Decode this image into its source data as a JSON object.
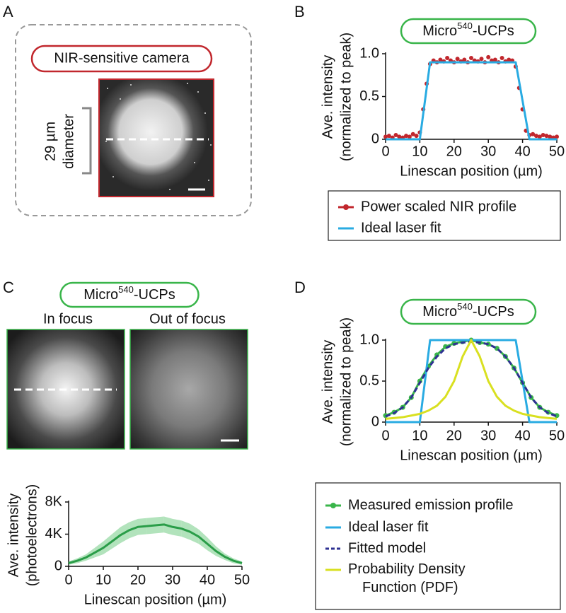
{
  "panel_labels": [
    "A",
    "B",
    "C",
    "D"
  ],
  "panel_a": {
    "camera_label": "NIR-sensitive camera",
    "label_color": "#c1272d",
    "scale_label": [
      "29 µm",
      "diameter"
    ]
  },
  "panel_c": {
    "image_labels": [
      "In focus",
      "Out of focus"
    ]
  },
  "chart_data": [
    {
      "type": "line",
      "title": [
        "Micro",
        "540",
        "-UCPs"
      ],
      "title_box_color": "#39b54a",
      "xlabel": "Linescan position (µm)",
      "ylabel": [
        "Ave. intensity",
        "(normalized to peak)"
      ],
      "xlim": [
        0,
        50
      ],
      "xticks": [
        0,
        10,
        20,
        30,
        40,
        50
      ],
      "ylim": [
        0,
        1
      ],
      "yticks": [
        0,
        0.5,
        {
          "value": 1,
          "label": "1.0"
        }
      ],
      "x": [
        0,
        1,
        2,
        3,
        4,
        5,
        6,
        7,
        8,
        9,
        10,
        11,
        12,
        13,
        14,
        15,
        16,
        17,
        18,
        19,
        20,
        21,
        22,
        23,
        24,
        25,
        26,
        27,
        28,
        29,
        30,
        31,
        32,
        33,
        34,
        35,
        36,
        37,
        38,
        39,
        40,
        41,
        42,
        43,
        44,
        45,
        46,
        47,
        48,
        49,
        50
      ],
      "series": [
        {
          "name": "Power scaled NIR profile",
          "color": "#c1272d",
          "markers": true,
          "line": false,
          "values": [
            0.03,
            0.04,
            0.02,
            0.05,
            0.03,
            0.02,
            0.04,
            0.03,
            0.06,
            0.04,
            0.08,
            0.35,
            0.65,
            0.88,
            0.92,
            0.9,
            0.93,
            0.91,
            0.95,
            0.92,
            0.9,
            0.94,
            0.91,
            0.93,
            0.9,
            0.95,
            0.92,
            0.91,
            0.94,
            0.9,
            0.96,
            0.92,
            0.93,
            0.9,
            0.95,
            0.91,
            0.93,
            0.92,
            0.85,
            0.6,
            0.35,
            0.1,
            0.05,
            0.06,
            0.04,
            0.03,
            0.05,
            0.04,
            0.03,
            0.02,
            0.03
          ]
        },
        {
          "name": "Ideal laser fit",
          "color": "#29abe2",
          "markers": false,
          "x": [
            0,
            10,
            13,
            38,
            42,
            50
          ],
          "values": [
            0,
            0,
            0.9,
            0.9,
            0,
            0
          ]
        }
      ]
    },
    {
      "type": "line",
      "title": [
        "Micro",
        "540",
        "-UCPs"
      ],
      "title_box_color": "#39b54a",
      "xlabel": "Linescan position (µm)",
      "ylabel": [
        "Ave. intensity",
        "(photoelectrons)"
      ],
      "xlim": [
        0,
        50
      ],
      "xticks": [
        0,
        10,
        20,
        30,
        40,
        50
      ],
      "ylim": [
        0,
        8000
      ],
      "yticks": [
        0,
        {
          "value": 4000,
          "label": "4K"
        },
        {
          "value": 8000,
          "label": "8K"
        }
      ],
      "x": [
        0,
        2.5,
        5,
        7.5,
        10,
        12.5,
        15,
        17.5,
        20,
        22.5,
        25,
        27.5,
        30,
        32.5,
        35,
        37.5,
        40,
        42.5,
        45,
        47.5,
        50
      ],
      "series": [
        {
          "color": "#2a9d48",
          "band_color": "#7fd08f",
          "values": [
            400,
            700,
            1100,
            1700,
            2300,
            3100,
            3900,
            4500,
            4900,
            5000,
            5100,
            5200,
            4900,
            4700,
            4300,
            3700,
            2800,
            1900,
            1200,
            700,
            400
          ],
          "errors": [
            200,
            300,
            400,
            600,
            800,
            900,
            1000,
            1000,
            1000,
            1000,
            1000,
            1000,
            1000,
            1000,
            1000,
            900,
            800,
            600,
            400,
            300,
            200
          ]
        }
      ]
    },
    {
      "type": "line",
      "title": [
        "Micro",
        "540",
        "-UCPs"
      ],
      "title_box_color": "#39b54a",
      "xlabel": "Linescan position (µm)",
      "ylabel": [
        "Ave. intensity",
        "(normalized to peak)"
      ],
      "xlim": [
        0,
        50
      ],
      "xticks": [
        0,
        10,
        20,
        30,
        40,
        50
      ],
      "ylim": [
        0,
        1
      ],
      "yticks": [
        0,
        0.5,
        {
          "value": 1,
          "label": "1.0"
        }
      ],
      "x": [
        0,
        2.5,
        5,
        7.5,
        10,
        12.5,
        15,
        17.5,
        20,
        22.5,
        25,
        27.5,
        30,
        32.5,
        35,
        37.5,
        40,
        42.5,
        45,
        47.5,
        50
      ],
      "series": [
        {
          "name": "Measured emission profile",
          "color": "#39b54a",
          "markers": true,
          "values": [
            0.08,
            0.12,
            0.18,
            0.3,
            0.5,
            0.68,
            0.82,
            0.92,
            0.96,
            0.98,
            1.0,
            0.97,
            0.95,
            0.9,
            0.8,
            0.66,
            0.48,
            0.3,
            0.18,
            0.12,
            0.08
          ]
        },
        {
          "name": "Ideal laser fit",
          "color": "#29abe2",
          "markers": false,
          "x": [
            0,
            10,
            13,
            38,
            42,
            50
          ],
          "values": [
            0,
            0,
            1,
            1,
            0,
            0
          ]
        },
        {
          "name": "Fitted model",
          "color": "#2e3192",
          "markers": false,
          "dash": true,
          "values": [
            0.07,
            0.11,
            0.18,
            0.3,
            0.48,
            0.66,
            0.8,
            0.9,
            0.95,
            0.97,
            0.98,
            0.97,
            0.95,
            0.9,
            0.8,
            0.66,
            0.48,
            0.3,
            0.18,
            0.11,
            0.07
          ]
        },
        {
          "name": "Probability Density Function (PDF)",
          "color": "#d9e021",
          "markers": false,
          "values": [
            0.04,
            0.05,
            0.06,
            0.08,
            0.1,
            0.14,
            0.2,
            0.31,
            0.5,
            0.8,
            1.0,
            0.8,
            0.5,
            0.31,
            0.2,
            0.14,
            0.1,
            0.08,
            0.06,
            0.05,
            0.04
          ]
        }
      ]
    }
  ]
}
